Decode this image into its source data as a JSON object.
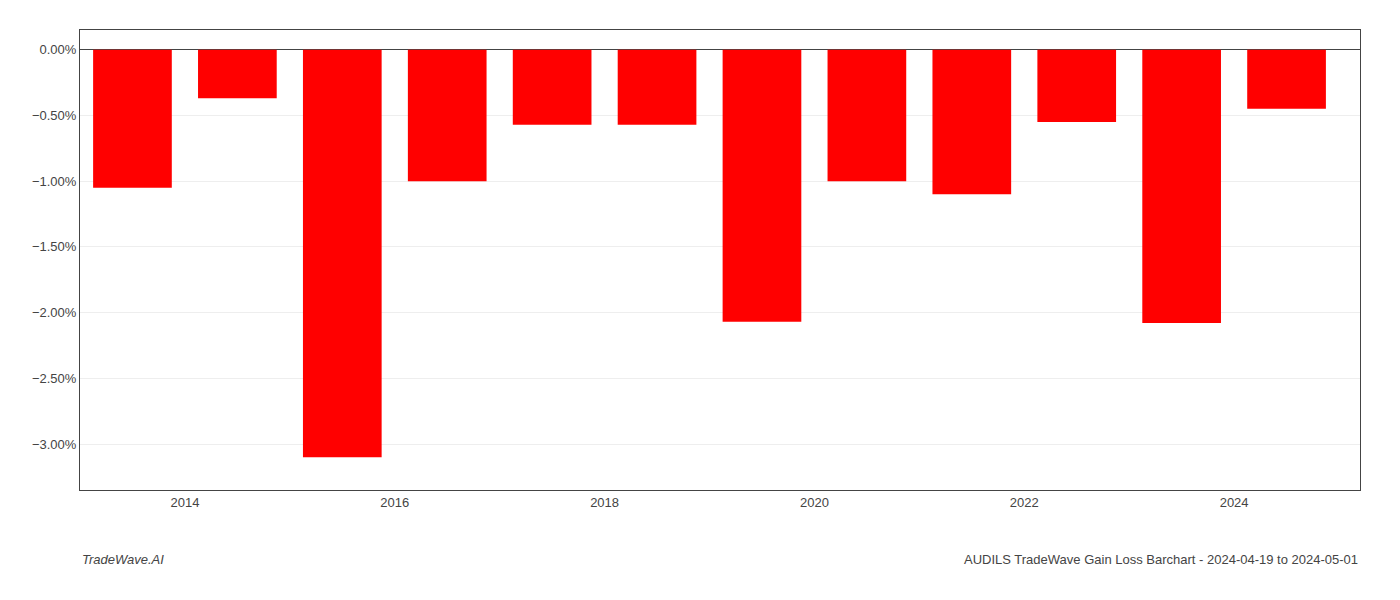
{
  "chart_data": {
    "type": "bar",
    "x": [
      2013.5,
      2014.5,
      2015.5,
      2016.5,
      2017.5,
      2018.5,
      2019.5,
      2020.5,
      2021.5,
      2022.5,
      2023.5,
      2024.5
    ],
    "values": [
      -1.05,
      -0.37,
      -3.1,
      -1.0,
      -0.57,
      -0.57,
      -2.07,
      -1.0,
      -1.1,
      -0.55,
      -2.08,
      -0.45
    ],
    "color": "#ff0000",
    "xlim": [
      2013,
      2025.2
    ],
    "xticks": [
      2014,
      2016,
      2018,
      2020,
      2022,
      2024
    ],
    "ylim": [
      -3.35,
      0.15
    ],
    "yticks": [
      {
        "value": 0.0,
        "label": "0.00%"
      },
      {
        "value": -0.5,
        "label": "−0.50%"
      },
      {
        "value": -1.0,
        "label": "−1.00%"
      },
      {
        "value": -1.5,
        "label": "−1.50%"
      },
      {
        "value": -2.0,
        "label": "−2.00%"
      },
      {
        "value": -2.5,
        "label": "−2.50%"
      },
      {
        "value": -3.0,
        "label": "−3.00%"
      }
    ],
    "grid": true,
    "annotations": [
      "TradeWave.AI",
      "AUDILS TradeWave Gain Loss Barchart - 2024-04-19 to 2024-05-01"
    ]
  }
}
